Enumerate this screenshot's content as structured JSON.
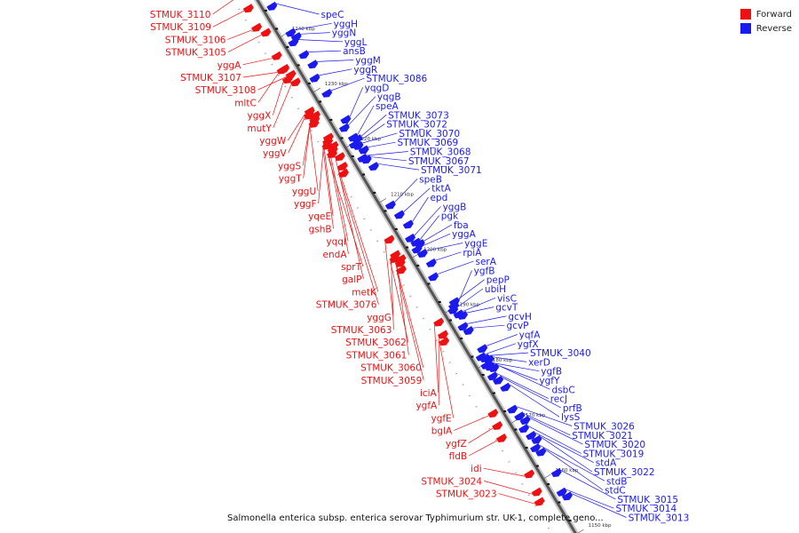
{
  "legend": {
    "forward_label": "Forward",
    "reverse_label": "Reverse",
    "forward_color": "#ee1111",
    "reverse_color": "#1a1aee"
  },
  "caption": "Salmonella enterica subsp. enterica serovar Typhimurium str. UK-1, complete geno...",
  "ticks": [
    {
      "label": "1240 kbp",
      "pos": 1240
    },
    {
      "label": "1230 kbp",
      "pos": 1230
    },
    {
      "label": "1220 kbp",
      "pos": 1220
    },
    {
      "label": "1210 kbp",
      "pos": 1210
    },
    {
      "label": "1200 kbp",
      "pos": 1200
    },
    {
      "label": "1190 kbp",
      "pos": 1190
    },
    {
      "label": "1180 kbp",
      "pos": 1180
    },
    {
      "label": "1170 kbp",
      "pos": 1170
    },
    {
      "label": "1160 kbp",
      "pos": 1160
    },
    {
      "label": "1150 kbp",
      "pos": 1150
    }
  ],
  "forward_genes": [
    {
      "label": "STMUK_3110",
      "pos": 1248.8
    },
    {
      "label": "STMUK_3109",
      "pos": 1246.4
    },
    {
      "label": "STMUK_3106",
      "pos": 1243.2
    },
    {
      "label": "STMUK_3105",
      "pos": 1241.8
    },
    {
      "label": "yggA",
      "pos": 1237.8
    },
    {
      "label": "STMUK_3107",
      "pos": 1235.5
    },
    {
      "label": "STMUK_3108",
      "pos": 1234.2
    },
    {
      "label": "mltC",
      "pos": 1235.5
    },
    {
      "label": "yggX",
      "pos": 1233.8
    },
    {
      "label": "mutY",
      "pos": 1232.8
    },
    {
      "label": "yggW",
      "pos": 1227.8
    },
    {
      "label": "yggV",
      "pos": 1227.3
    },
    {
      "label": "yggS",
      "pos": 1226.8
    },
    {
      "label": "yggT",
      "pos": 1226.3
    },
    {
      "label": "yggU",
      "pos": 1225.8
    },
    {
      "label": "yggF",
      "pos": 1222.8
    },
    {
      "label": "yqeE",
      "pos": 1222.3
    },
    {
      "label": "gshB",
      "pos": 1221.8
    },
    {
      "label": "yqqI",
      "pos": 1221.3
    },
    {
      "label": "endA",
      "pos": 1220.8
    },
    {
      "label": "sprT",
      "pos": 1220.3
    },
    {
      "label": "galP",
      "pos": 1219.3
    },
    {
      "label": "metK",
      "pos": 1217.8
    },
    {
      "label": "STMUK_3076",
      "pos": 1216.8
    },
    {
      "label": "yggG",
      "pos": 1204.3
    },
    {
      "label": "STMUK_3063",
      "pos": 1201.8
    },
    {
      "label": "STMUK_3062",
      "pos": 1201.3
    },
    {
      "label": "STMUK_3061",
      "pos": 1200.8
    },
    {
      "label": "STMUK_3060",
      "pos": 1200.3
    },
    {
      "label": "STMUK_3059",
      "pos": 1199.3
    },
    {
      "label": "iciA",
      "pos": 1189.3
    },
    {
      "label": "ygfA",
      "pos": 1187.3
    },
    {
      "label": "ygfE",
      "pos": 1186.3
    },
    {
      "label": "bglA",
      "pos": 1172.8
    },
    {
      "label": "ygfZ",
      "pos": 1170.8
    },
    {
      "label": "fldB",
      "pos": 1168.8
    },
    {
      "label": "idi",
      "pos": 1161.8
    },
    {
      "label": "STMUK_3024",
      "pos": 1158.8
    },
    {
      "label": "STMUK_3023",
      "pos": 1157.3
    }
  ],
  "reverse_genes": [
    {
      "label": "speC",
      "pos": 1244.8
    },
    {
      "label": "yggH",
      "pos": 1239.8
    },
    {
      "label": "yggN",
      "pos": 1238.8
    },
    {
      "label": "yggL",
      "pos": 1238.3
    },
    {
      "label": "ansB",
      "pos": 1235.8
    },
    {
      "label": "yggM",
      "pos": 1233.8
    },
    {
      "label": "yggR",
      "pos": 1231.8
    },
    {
      "label": "STMUK_3086",
      "pos": 1228.8
    },
    {
      "label": "yqgD",
      "pos": 1223.8
    },
    {
      "label": "yqgB",
      "pos": 1222.8
    },
    {
      "label": "speA",
      "pos": 1220.8
    },
    {
      "label": "STMUK_3073",
      "pos": 1220.3
    },
    {
      "label": "STMUK_3072",
      "pos": 1219.8
    },
    {
      "label": "STMUK_3070",
      "pos": 1219.3
    },
    {
      "label": "STMUK_3069",
      "pos": 1218.3
    },
    {
      "label": "STMUK_3068",
      "pos": 1217.3
    },
    {
      "label": "STMUK_3067",
      "pos": 1216.8
    },
    {
      "label": "STMUK_3071",
      "pos": 1215.3
    },
    {
      "label": "speB",
      "pos": 1208.8
    },
    {
      "label": "tktA",
      "pos": 1206.8
    },
    {
      "label": "epd",
      "pos": 1204.8
    },
    {
      "label": "yggB",
      "pos": 1202.8
    },
    {
      "label": "pgk",
      "pos": 1201.8
    },
    {
      "label": "fba",
      "pos": 1201.3
    },
    {
      "label": "yggA",
      "pos": 1200.8
    },
    {
      "label": "yggE",
      "pos": 1199.8
    },
    {
      "label": "rpiA",
      "pos": 1197.8
    },
    {
      "label": "serA",
      "pos": 1195.8
    },
    {
      "label": "ygfB",
      "pos": 1190.3
    },
    {
      "label": "pepP",
      "pos": 1190.8
    },
    {
      "label": "ubiH",
      "pos": 1189.8
    },
    {
      "label": "visC",
      "pos": 1188.8
    },
    {
      "label": "gcvT",
      "pos": 1188.3
    },
    {
      "label": "gcvH",
      "pos": 1186.8
    },
    {
      "label": "gcvP",
      "pos": 1185.8
    },
    {
      "label": "yqfA",
      "pos": 1182.3
    },
    {
      "label": "ygfX",
      "pos": 1181.3
    },
    {
      "label": "STMUK_3040",
      "pos": 1180.8
    },
    {
      "label": "xerD",
      "pos": 1180.3
    },
    {
      "label": "ygfB",
      "pos": 1179.8
    },
    {
      "label": "ygfY",
      "pos": 1179.3
    },
    {
      "label": "dsbC",
      "pos": 1178.8
    },
    {
      "label": "recJ",
      "pos": 1177.8
    },
    {
      "label": "prfB",
      "pos": 1176.8
    },
    {
      "label": "lysS",
      "pos": 1175.3
    },
    {
      "label": "STMUK_3026",
      "pos": 1171.8
    },
    {
      "label": "STMUK_3021",
      "pos": 1170.3
    },
    {
      "label": "STMUK_3020",
      "pos": 1169.3
    },
    {
      "label": "STMUK_3019",
      "pos": 1168.3
    },
    {
      "label": "stdA",
      "pos": 1166.8
    },
    {
      "label": "STMUK_3022",
      "pos": 1165.8
    },
    {
      "label": "stdB",
      "pos": 1164.8
    },
    {
      "label": "stdC",
      "pos": 1163.8
    },
    {
      "label": "STMUK_3015",
      "pos": 1159.8
    },
    {
      "label": "STMUK_3014",
      "pos": 1156.8
    },
    {
      "label": "STMUK_3013",
      "pos": 1155.8
    }
  ]
}
